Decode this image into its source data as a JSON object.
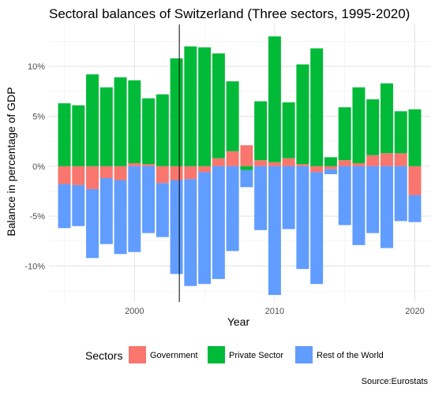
{
  "chart_data": {
    "type": "bar",
    "stacking": "diverging",
    "title": "Sectoral balances of Switzerland (Three sectors, 1995-2020)",
    "xlabel": "Year",
    "ylabel": "Balance in percentage of GDP",
    "caption": "Source:Eurostats",
    "legend": {
      "title": "Sectors",
      "position": "bottom"
    },
    "x_ticks": [
      2000,
      2010,
      2020
    ],
    "y_ticks": [
      {
        "value": 10,
        "label": "10%"
      },
      {
        "value": 5,
        "label": "5%"
      },
      {
        "value": 0,
        "label": "0%"
      },
      {
        "value": -5,
        "label": "-5%"
      },
      {
        "value": -10,
        "label": "-10%"
      }
    ],
    "xlim": [
      1993.9,
      2021.1
    ],
    "ylim": [
      -13.6,
      14.2
    ],
    "grid": true,
    "vline": {
      "x": 2003.2
    },
    "categories": [
      1995,
      1996,
      1997,
      1998,
      1999,
      2000,
      2001,
      2002,
      2003,
      2004,
      2005,
      2006,
      2007,
      2008,
      2009,
      2010,
      2011,
      2012,
      2013,
      2014,
      2015,
      2016,
      2017,
      2018,
      2019,
      2020
    ],
    "series": [
      {
        "name": "Government",
        "color": "#F8766D",
        "values": [
          -1.8,
          -1.9,
          -2.3,
          -1.2,
          -1.4,
          0.3,
          0.2,
          -1.7,
          -1.4,
          -1.3,
          -0.6,
          0.8,
          1.5,
          2.1,
          0.6,
          0.4,
          0.8,
          0.2,
          -0.6,
          -0.3,
          0.6,
          0.3,
          1.1,
          1.3,
          1.3,
          -2.9
        ]
      },
      {
        "name": "Private Sector",
        "color": "#00BA38",
        "values": [
          6.3,
          6.1,
          9.2,
          7.9,
          8.9,
          8.3,
          6.6,
          7.2,
          10.8,
          12.0,
          11.9,
          10.5,
          7.0,
          -0.4,
          5.9,
          12.6,
          5.6,
          10.0,
          11.8,
          0.9,
          5.3,
          7.6,
          5.6,
          7.0,
          4.2,
          5.7
        ]
      },
      {
        "name": "Rest of the World",
        "color": "#619CFF",
        "values": [
          -4.4,
          -4.1,
          -6.9,
          -6.6,
          -7.4,
          -8.6,
          -6.7,
          -5.4,
          -9.4,
          -10.7,
          -11.2,
          -11.3,
          -8.5,
          -1.7,
          -6.4,
          -12.9,
          -6.3,
          -10.3,
          -11.2,
          -0.5,
          -5.9,
          -7.9,
          -6.7,
          -8.2,
          -5.5,
          -2.7
        ]
      }
    ]
  }
}
